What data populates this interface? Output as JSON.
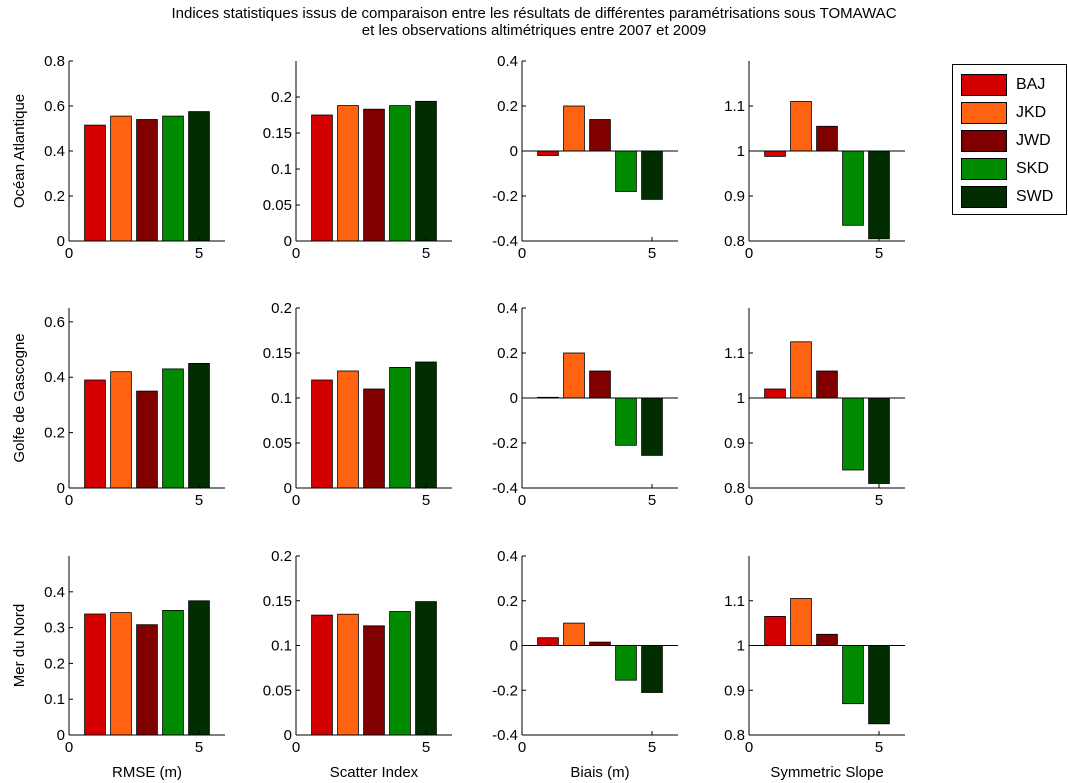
{
  "title_lines": [
    "Indices statistiques issus de comparaison entre les résultats de différentes paramétrisations sous TOMAWAC",
    "et les observations altimétriques entre 2007 et 2009"
  ],
  "colors": {
    "BAJ": "#d40000",
    "JKD": "#ff6210",
    "JWD": "#800000",
    "SKD": "#008a00",
    "SWD": "#002e00"
  },
  "chart_data": {
    "type": "bar",
    "title": "Indices statistiques issus de comparaison entre les résultats de différentes paramétrisations sous TOMAWAC et les observations altimétriques entre 2007 et 2009",
    "legend": {
      "placement": "top-right",
      "entries": [
        "BAJ",
        "JKD",
        "JWD",
        "SKD",
        "SWD"
      ]
    },
    "x": [
      1,
      2,
      3,
      4,
      5
    ],
    "grid": false,
    "row_labels": [
      "Océan Atlantique",
      "Golfe de Gascogne",
      "Mer du Nord"
    ],
    "column_labels": [
      "RMSE (m)",
      "Scatter Index",
      "Biais (m)",
      "Symmetric Slope"
    ],
    "panels": [
      {
        "row": 0,
        "col": 0,
        "ylim": [
          0,
          0.8
        ],
        "baseline": 0,
        "yticks": [
          "0",
          "0.2",
          "0.4",
          "0.6",
          "0.8"
        ],
        "ytick_values": [
          0,
          0.2,
          0.4,
          0.6,
          0.8
        ],
        "values": [
          0.515,
          0.555,
          0.54,
          0.555,
          0.575
        ]
      },
      {
        "row": 0,
        "col": 1,
        "ylim": [
          0,
          0.25
        ],
        "baseline": 0,
        "yticks": [
          "0",
          "0.05",
          "0.1",
          "0.15",
          "0.2"
        ],
        "ytick_values": [
          0,
          0.05,
          0.1,
          0.15,
          0.2
        ],
        "values": [
          0.175,
          0.188,
          0.183,
          0.188,
          0.194
        ]
      },
      {
        "row": 0,
        "col": 2,
        "ylim": [
          -0.4,
          0.4
        ],
        "baseline": 0,
        "yticks": [
          "-0.4",
          "-0.2",
          "0",
          "0.2",
          "0.4"
        ],
        "ytick_values": [
          -0.4,
          -0.2,
          0,
          0.2,
          0.4
        ],
        "values": [
          -0.02,
          0.2,
          0.14,
          -0.18,
          -0.215
        ]
      },
      {
        "row": 0,
        "col": 3,
        "ylim": [
          0.8,
          1.2
        ],
        "baseline": 1,
        "yticks": [
          "0.8",
          "0.9",
          "1",
          "1.1"
        ],
        "ytick_values": [
          0.8,
          0.9,
          1.0,
          1.1
        ],
        "values": [
          0.988,
          1.11,
          1.055,
          0.835,
          0.805
        ]
      },
      {
        "row": 1,
        "col": 0,
        "ylim": [
          0,
          0.65
        ],
        "baseline": 0,
        "yticks": [
          "0",
          "0.2",
          "0.4",
          "0.6"
        ],
        "ytick_values": [
          0,
          0.2,
          0.4,
          0.6
        ],
        "values": [
          0.39,
          0.42,
          0.35,
          0.43,
          0.45
        ]
      },
      {
        "row": 1,
        "col": 1,
        "ylim": [
          0,
          0.2
        ],
        "baseline": 0,
        "yticks": [
          "0",
          "0.05",
          "0.1",
          "0.15",
          "0.2"
        ],
        "ytick_values": [
          0,
          0.05,
          0.1,
          0.15,
          0.2
        ],
        "values": [
          0.12,
          0.13,
          0.11,
          0.134,
          0.14
        ]
      },
      {
        "row": 1,
        "col": 2,
        "ylim": [
          -0.4,
          0.4
        ],
        "baseline": 0,
        "yticks": [
          "-0.4",
          "-0.2",
          "0",
          "0.2",
          "0.4"
        ],
        "ytick_values": [
          -0.4,
          -0.2,
          0,
          0.2,
          0.4
        ],
        "values": [
          0.003,
          0.2,
          0.12,
          -0.21,
          -0.255
        ]
      },
      {
        "row": 1,
        "col": 3,
        "ylim": [
          0.8,
          1.2
        ],
        "baseline": 1,
        "yticks": [
          "0.8",
          "0.9",
          "1",
          "1.1"
        ],
        "ytick_values": [
          0.8,
          0.9,
          1.0,
          1.1
        ],
        "values": [
          1.02,
          1.125,
          1.06,
          0.84,
          0.81
        ]
      },
      {
        "row": 2,
        "col": 0,
        "ylim": [
          0,
          0.5
        ],
        "baseline": 0,
        "yticks": [
          "0",
          "0.1",
          "0.2",
          "0.3",
          "0.4"
        ],
        "ytick_values": [
          0,
          0.1,
          0.2,
          0.3,
          0.4
        ],
        "values": [
          0.338,
          0.342,
          0.308,
          0.348,
          0.375
        ]
      },
      {
        "row": 2,
        "col": 1,
        "ylim": [
          0,
          0.2
        ],
        "baseline": 0,
        "yticks": [
          "0",
          "0.05",
          "0.1",
          "0.15",
          "0.2"
        ],
        "ytick_values": [
          0,
          0.05,
          0.1,
          0.15,
          0.2
        ],
        "values": [
          0.134,
          0.135,
          0.122,
          0.138,
          0.149
        ]
      },
      {
        "row": 2,
        "col": 2,
        "ylim": [
          -0.4,
          0.4
        ],
        "baseline": 0,
        "yticks": [
          "-0.4",
          "-0.2",
          "0",
          "0.2",
          "0.4"
        ],
        "ytick_values": [
          -0.4,
          -0.2,
          0,
          0.2,
          0.4
        ],
        "values": [
          0.035,
          0.1,
          0.015,
          -0.155,
          -0.21
        ]
      },
      {
        "row": 2,
        "col": 3,
        "ylim": [
          0.8,
          1.2
        ],
        "baseline": 1,
        "yticks": [
          "0.8",
          "0.9",
          "1",
          "1.1"
        ],
        "ytick_values": [
          0.8,
          0.9,
          1.0,
          1.1
        ],
        "values": [
          1.065,
          1.105,
          1.025,
          0.87,
          0.825
        ]
      }
    ],
    "xlim": [
      0,
      6
    ],
    "xticks": [
      "0",
      "5"
    ],
    "xtick_values": [
      0,
      5
    ]
  }
}
